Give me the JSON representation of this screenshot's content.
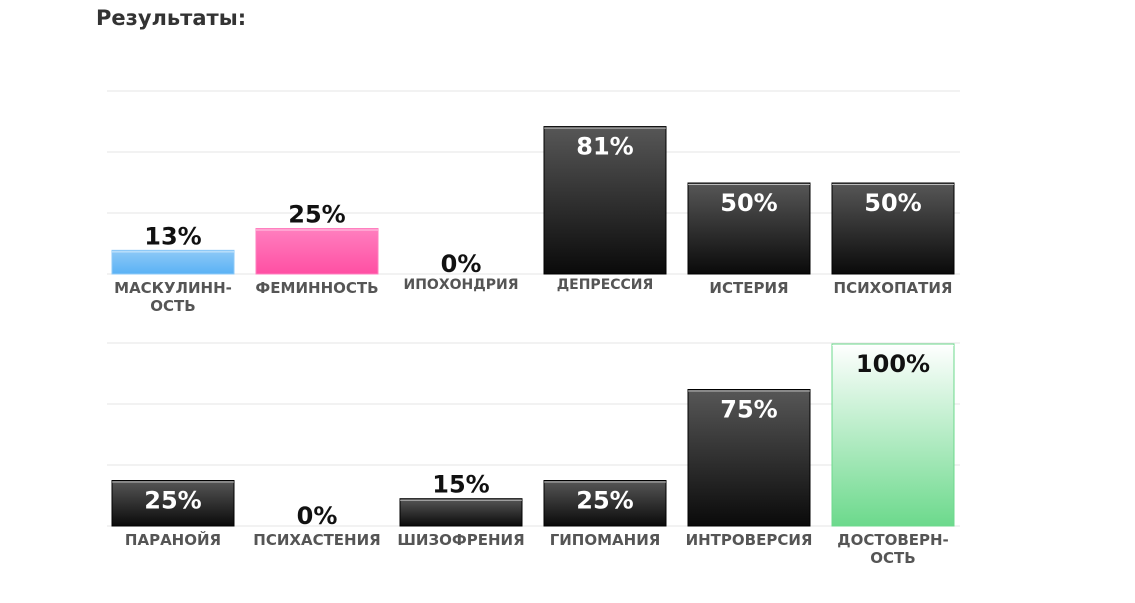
{
  "page": {
    "title": "Результаты:"
  },
  "chart_data": [
    {
      "type": "bar",
      "categories": [
        "МАСКУЛИНН-\nОСТЬ",
        "ФЕМИННОСТЬ",
        "ИПОХОНДРИЯ",
        "ДЕПРЕССИЯ",
        "ИСТЕРИЯ",
        "ПСИХОПАТИЯ"
      ],
      "values": [
        13,
        25,
        0,
        81,
        50,
        50
      ],
      "value_labels": [
        "13%",
        "25%",
        "0%",
        "81%",
        "50%",
        "50%"
      ],
      "bar_styles": [
        "blue",
        "pink",
        "dark",
        "dark",
        "dark",
        "dark"
      ],
      "ylim": [
        0,
        100
      ],
      "grid": true
    },
    {
      "type": "bar",
      "categories": [
        "ПАРАНОЙЯ",
        "ПСИХАСТЕНИЯ",
        "ШИЗОФРЕНИЯ",
        "ГИПОМАНИЯ",
        "ИНТРОВЕРСИЯ",
        "ДОСТОВЕРН-\nОСТЬ"
      ],
      "values": [
        25,
        0,
        15,
        25,
        75,
        100
      ],
      "value_labels": [
        "25%",
        "0%",
        "15%",
        "25%",
        "75%",
        "100%"
      ],
      "bar_styles": [
        "dark",
        "dark",
        "dark",
        "dark",
        "dark",
        "green"
      ],
      "ylim": [
        0,
        100
      ],
      "grid": true
    }
  ],
  "colors": {
    "blue_top": "#8ec9f7",
    "blue_bottom": "#5ab2f5",
    "pink_top": "#ff7fbf",
    "pink_bottom": "#ff4fa3",
    "dark_top": "#575757",
    "dark_bottom": "#0a0a0a",
    "green_top": "#ffffff",
    "green_bottom": "#6cd98c",
    "grid": "#e6e6e6",
    "text_light": "#ffffff",
    "text_dark": "#111111"
  }
}
